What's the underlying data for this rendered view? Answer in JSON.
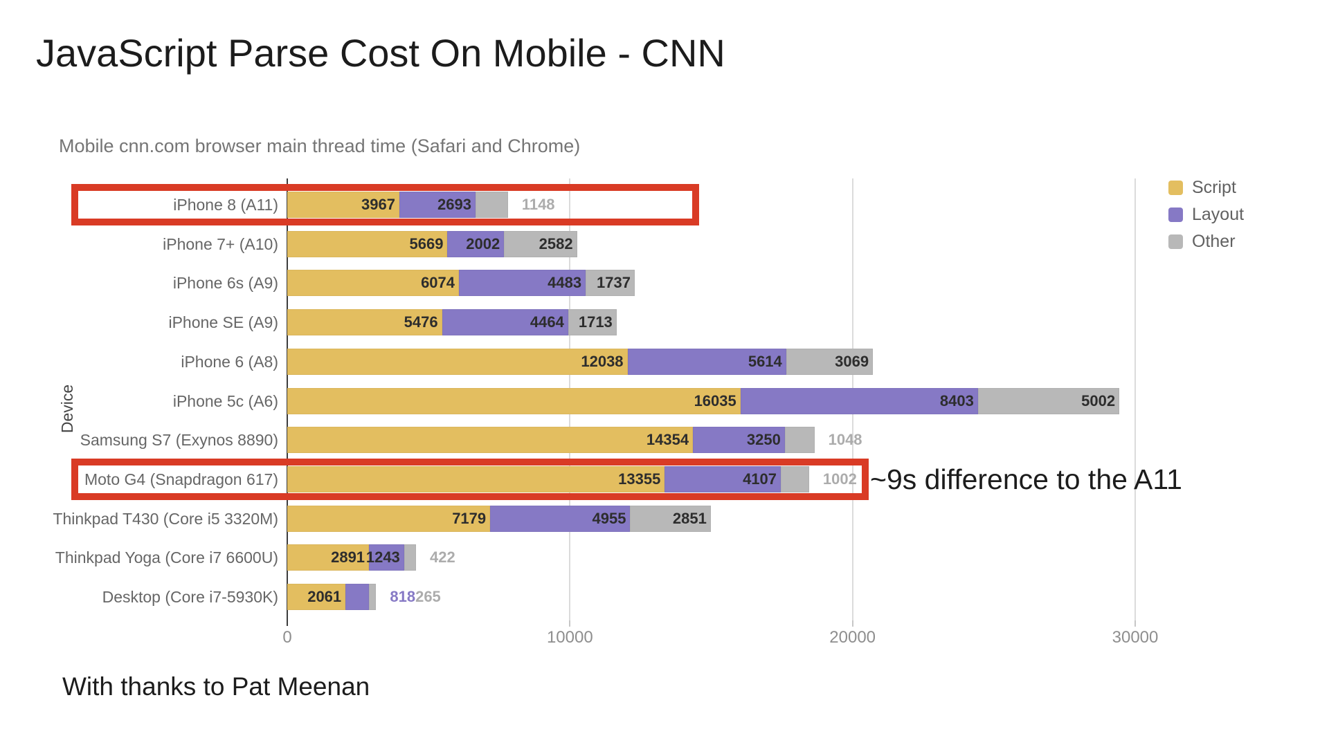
{
  "title": "JavaScript Parse Cost On Mobile - CNN",
  "footer": "With thanks to Pat Meenan",
  "annotation": "~9s difference to the A11",
  "highlights": {
    "color": "#D93B25",
    "rows": [
      0,
      7
    ],
    "note_row": 7
  },
  "chart_data": {
    "type": "bar",
    "orientation": "horizontal",
    "title": "Mobile cnn.com browser main thread time (Safari and Chrome)",
    "xlabel": "",
    "ylabel": "Device",
    "xlim": [
      0,
      30000
    ],
    "xticks": [
      0,
      10000,
      20000,
      30000
    ],
    "grid": true,
    "legend_position": "top-right",
    "categories": [
      "iPhone 8 (A11)",
      "iPhone 7+ (A10)",
      "iPhone 6s (A9)",
      "iPhone SE (A9)",
      "iPhone 6 (A8)",
      "iPhone 5c (A6)",
      "Samsung S7 (Exynos 8890)",
      "Moto G4 (Snapdragon 617)",
      "Thinkpad T430 (Core i5 3320M)",
      "Thinkpad Yoga (Core i7 6600U)",
      "Desktop (Core i7-5930K)"
    ],
    "series": [
      {
        "name": "Script",
        "color": "#E3BE60",
        "outside_label_color": "#E3BE60",
        "values": [
          3967,
          5669,
          6074,
          5476,
          12038,
          16035,
          14354,
          13355,
          7179,
          2891,
          2061
        ]
      },
      {
        "name": "Layout",
        "color": "#8679C5",
        "outside_label_color": "#8679C5",
        "values": [
          2693,
          2002,
          4483,
          4464,
          5614,
          8403,
          3250,
          4107,
          4955,
          1243,
          818
        ]
      },
      {
        "name": "Other",
        "color": "#B8B8B8",
        "outside_label_color": "#ACACAC",
        "values": [
          1148,
          2582,
          1737,
          1713,
          3069,
          5002,
          1048,
          1002,
          2851,
          422,
          265
        ]
      }
    ]
  }
}
